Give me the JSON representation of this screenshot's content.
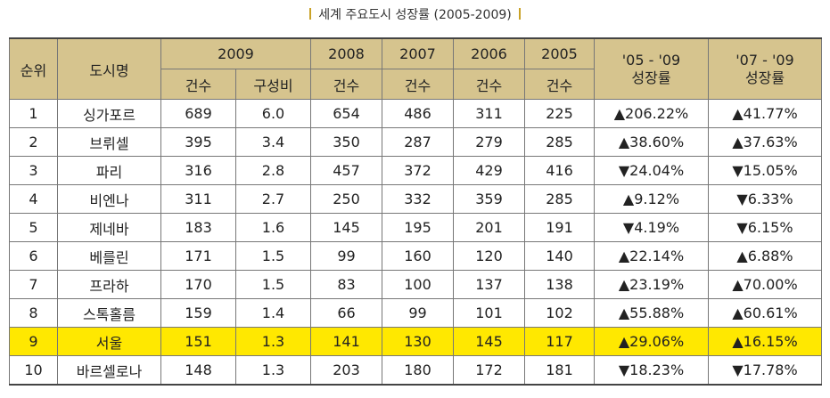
{
  "title": "세계 주요도시 성장률 (2005-2009)",
  "header": {
    "rank": "순위",
    "city": "도시명",
    "y2009": "2009",
    "y2008": "2008",
    "y2007": "2007",
    "y2006": "2006",
    "y2005": "2005",
    "growth1_line1": "'05 - '09",
    "growth1_line2": "성장률",
    "growth2_line1": "'07 - '09",
    "growth2_line2": "성장률",
    "count": "건수",
    "share": "구성비"
  },
  "rows": [
    {
      "rank": "1",
      "city": "싱가포르",
      "c2009": "689",
      "share": "6.0",
      "c2008": "654",
      "c2007": "486",
      "c2006": "311",
      "c2005": "225",
      "g1": "▲206.22%",
      "g2": "▲41.77%"
    },
    {
      "rank": "2",
      "city": "브뤼셀",
      "c2009": "395",
      "share": "3.4",
      "c2008": "350",
      "c2007": "287",
      "c2006": "279",
      "c2005": "285",
      "g1": "▲38.60%",
      "g2": "▲37.63%"
    },
    {
      "rank": "3",
      "city": "파리",
      "c2009": "316",
      "share": "2.8",
      "c2008": "457",
      "c2007": "372",
      "c2006": "429",
      "c2005": "416",
      "g1": "▼24.04%",
      "g2": "▼15.05%"
    },
    {
      "rank": "4",
      "city": "비엔나",
      "c2009": "311",
      "share": "2.7",
      "c2008": "250",
      "c2007": "332",
      "c2006": "359",
      "c2005": "285",
      "g1": "▲9.12%",
      "g2": "▼6.33%"
    },
    {
      "rank": "5",
      "city": "제네바",
      "c2009": "183",
      "share": "1.6",
      "c2008": "145",
      "c2007": "195",
      "c2006": "201",
      "c2005": "191",
      "g1": "▼4.19%",
      "g2": "▼6.15%"
    },
    {
      "rank": "6",
      "city": "베를린",
      "c2009": "171",
      "share": "1.5",
      "c2008": "99",
      "c2007": "160",
      "c2006": "120",
      "c2005": "140",
      "g1": "▲22.14%",
      "g2": "▲6.88%"
    },
    {
      "rank": "7",
      "city": "프라하",
      "c2009": "170",
      "share": "1.5",
      "c2008": "83",
      "c2007": "100",
      "c2006": "137",
      "c2005": "138",
      "g1": "▲23.19%",
      "g2": "▲70.00%"
    },
    {
      "rank": "8",
      "city": "스톡홀름",
      "c2009": "159",
      "share": "1.4",
      "c2008": "66",
      "c2007": "99",
      "c2006": "101",
      "c2005": "102",
      "g1": "▲55.88%",
      "g2": "▲60.61%"
    },
    {
      "rank": "9",
      "city": "서울",
      "c2009": "151",
      "share": "1.3",
      "c2008": "141",
      "c2007": "130",
      "c2006": "145",
      "c2005": "117",
      "g1": "▲29.06%",
      "g2": "▲16.15%"
    },
    {
      "rank": "10",
      "city": "바르셀로나",
      "c2009": "148",
      "share": "1.3",
      "c2008": "203",
      "c2007": "180",
      "c2006": "172",
      "c2005": "181",
      "g1": "▼18.23%",
      "g2": "▼17.78%"
    }
  ],
  "highlight_row_index": 8,
  "colors": {
    "header_bg": "#d6c48e",
    "highlight_bg": "#ffe800",
    "title_accent": "#c9a227"
  }
}
